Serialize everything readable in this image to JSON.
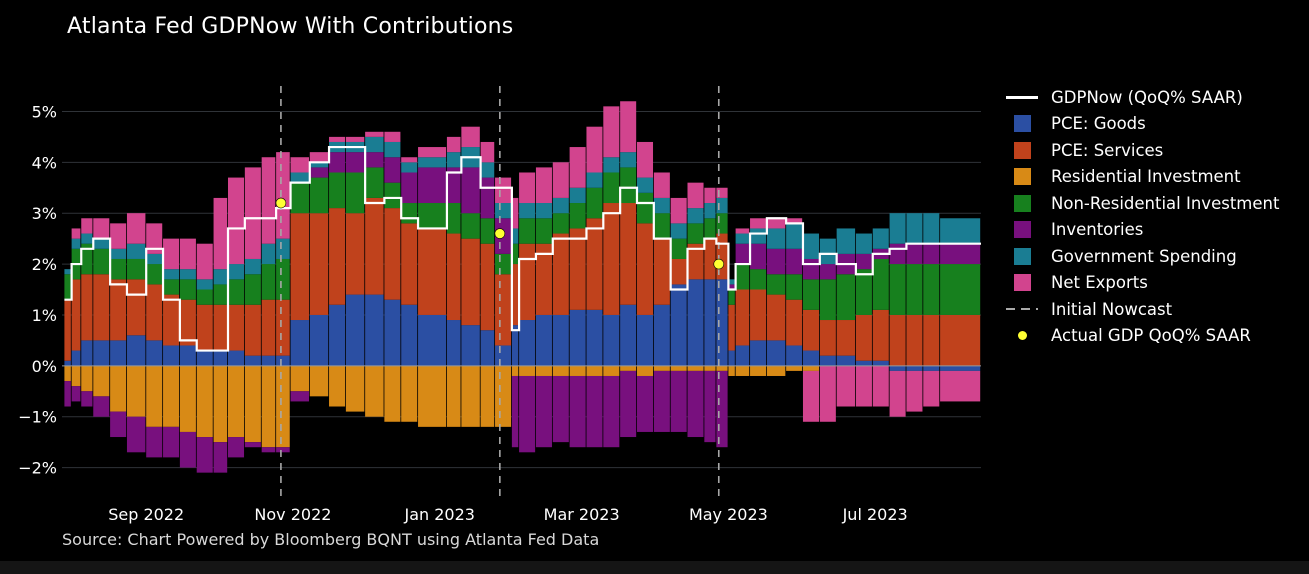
{
  "title": "Atlanta Fed GDPNow With Contributions",
  "source": "Source: Chart Powered by Bloomberg BQNT using Atlanta Fed Data",
  "legend": [
    {
      "label": "GDPNow (QoQ% SAAR)",
      "kind": "line",
      "color": "#ffffff"
    },
    {
      "label": "PCE: Goods",
      "kind": "box",
      "color": "#2b4fa3"
    },
    {
      "label": "PCE: Services",
      "kind": "box",
      "color": "#c0421c"
    },
    {
      "label": "Residential Investment",
      "kind": "box",
      "color": "#d88a16"
    },
    {
      "label": "Non-Residential Investment",
      "kind": "box",
      "color": "#17801e"
    },
    {
      "label": "Inventories",
      "kind": "box",
      "color": "#78107e"
    },
    {
      "label": "Government Spending",
      "kind": "box",
      "color": "#1a7d93"
    },
    {
      "label": "Net Exports",
      "kind": "box",
      "color": "#d2448e"
    },
    {
      "label": "Initial Nowcast",
      "kind": "dash",
      "color": "#aaaaaa"
    },
    {
      "label": "Actual GDP QoQ% SAAR",
      "kind": "dot",
      "color": "#ffff33"
    }
  ],
  "chart_data": {
    "type": "bar",
    "stacked": true,
    "x_start": "2022-07-28",
    "x_end": "2023-08-14",
    "xticks": [
      {
        "date": "2022-09-01",
        "label": "Sep 2022"
      },
      {
        "date": "2022-11-01",
        "label": "Nov 2022"
      },
      {
        "date": "2023-01-01",
        "label": "Jan 2023"
      },
      {
        "date": "2023-03-01",
        "label": "Mar 2023"
      },
      {
        "date": "2023-05-01",
        "label": "May 2023"
      },
      {
        "date": "2023-07-01",
        "label": "Jul 2023"
      }
    ],
    "ylim": [
      -2.5,
      5.5
    ],
    "yticks": [
      {
        "value": -2,
        "label": "−2%"
      },
      {
        "value": -1,
        "label": "−1%"
      },
      {
        "value": 0,
        "label": "0%"
      },
      {
        "value": 1,
        "label": "1%"
      },
      {
        "value": 2,
        "label": "2%"
      },
      {
        "value": 3,
        "label": "3%"
      },
      {
        "value": 4,
        "label": "4%"
      },
      {
        "value": 5,
        "label": "5%"
      }
    ],
    "initial_nowcasts": [
      "2022-10-27",
      "2023-01-26",
      "2023-04-27"
    ],
    "actual_gdp": [
      {
        "date": "2022-10-27",
        "value": 3.2
      },
      {
        "date": "2023-01-26",
        "value": 2.6
      },
      {
        "date": "2023-04-27",
        "value": 2.0
      }
    ],
    "components": [
      "PCE: Goods",
      "PCE: Services",
      "Residential Investment",
      "Non-Residential Investment",
      "Inventories",
      "Government Spending",
      "Net Exports"
    ],
    "series_colors": [
      "#2b4fa3",
      "#c0421c",
      "#d88a16",
      "#17801e",
      "#78107e",
      "#1a7d93",
      "#d2448e"
    ],
    "observations": [
      {
        "date": "2022-07-29",
        "values": [
          0.1,
          1.2,
          -0.3,
          0.5,
          -0.5,
          0.1,
          0.0
        ],
        "gdpnow": 1.3
      },
      {
        "date": "2022-08-01",
        "values": [
          0.3,
          1.4,
          -0.4,
          0.6,
          -0.3,
          0.2,
          0.2
        ],
        "gdpnow": 2.0
      },
      {
        "date": "2022-08-05",
        "values": [
          0.5,
          1.3,
          -0.5,
          0.6,
          -0.3,
          0.2,
          0.3
        ],
        "gdpnow": 2.3
      },
      {
        "date": "2022-08-10",
        "values": [
          0.5,
          1.3,
          -0.6,
          0.5,
          -0.4,
          0.2,
          0.4
        ],
        "gdpnow": 2.5
      },
      {
        "date": "2022-08-17",
        "values": [
          0.5,
          1.2,
          -0.9,
          0.4,
          -0.5,
          0.2,
          0.5
        ],
        "gdpnow": 1.6
      },
      {
        "date": "2022-08-24",
        "values": [
          0.6,
          1.1,
          -1.0,
          0.4,
          -0.7,
          0.3,
          0.6
        ],
        "gdpnow": 1.4
      },
      {
        "date": "2022-09-01",
        "values": [
          0.5,
          1.1,
          -1.2,
          0.4,
          -0.6,
          0.2,
          0.6
        ],
        "gdpnow": 2.3
      },
      {
        "date": "2022-09-08",
        "values": [
          0.4,
          1.0,
          -1.2,
          0.3,
          -0.6,
          0.2,
          0.6
        ],
        "gdpnow": 1.3
      },
      {
        "date": "2022-09-15",
        "values": [
          0.4,
          0.9,
          -1.3,
          0.4,
          -0.7,
          0.2,
          0.6
        ],
        "gdpnow": 0.5
      },
      {
        "date": "2022-09-22",
        "values": [
          0.3,
          0.9,
          -1.4,
          0.3,
          -0.7,
          0.2,
          0.7
        ],
        "gdpnow": 0.3
      },
      {
        "date": "2022-09-29",
        "values": [
          0.3,
          0.9,
          -1.5,
          0.4,
          -0.6,
          0.3,
          1.4
        ],
        "gdpnow": 0.3
      },
      {
        "date": "2022-10-05",
        "values": [
          0.3,
          0.9,
          -1.4,
          0.5,
          -0.4,
          0.3,
          1.7
        ],
        "gdpnow": 2.7
      },
      {
        "date": "2022-10-12",
        "values": [
          0.2,
          1.0,
          -1.5,
          0.6,
          -0.1,
          0.3,
          1.8
        ],
        "gdpnow": 2.9
      },
      {
        "date": "2022-10-19",
        "values": [
          0.2,
          1.1,
          -1.6,
          0.7,
          -0.1,
          0.4,
          1.7
        ],
        "gdpnow": 2.9
      },
      {
        "date": "2022-10-25",
        "values": [
          0.2,
          1.1,
          -1.6,
          0.8,
          -0.1,
          0.4,
          1.7
        ],
        "gdpnow": 3.1
      },
      {
        "date": "2022-10-31",
        "values": [
          0.9,
          2.1,
          -0.5,
          0.6,
          -0.2,
          0.2,
          0.3
        ],
        "gdpnow": 3.6
      },
      {
        "date": "2022-11-08",
        "values": [
          1.0,
          2.0,
          -0.6,
          0.7,
          0.2,
          0.1,
          0.2
        ],
        "gdpnow": 4.0
      },
      {
        "date": "2022-11-16",
        "values": [
          1.2,
          1.9,
          -0.8,
          0.7,
          0.4,
          0.2,
          0.1
        ],
        "gdpnow": 4.3
      },
      {
        "date": "2022-11-23",
        "values": [
          1.4,
          1.6,
          -0.9,
          0.8,
          0.4,
          0.2,
          0.1
        ],
        "gdpnow": 4.3
      },
      {
        "date": "2022-12-01",
        "values": [
          1.4,
          1.9,
          -1.0,
          0.6,
          0.3,
          0.3,
          0.1
        ],
        "gdpnow": 3.2
      },
      {
        "date": "2022-12-09",
        "values": [
          1.3,
          1.8,
          -1.1,
          0.5,
          0.5,
          0.3,
          0.2
        ],
        "gdpnow": 3.3
      },
      {
        "date": "2022-12-16",
        "values": [
          1.2,
          1.6,
          -1.1,
          0.4,
          0.6,
          0.2,
          0.1
        ],
        "gdpnow": 2.9
      },
      {
        "date": "2022-12-23",
        "values": [
          1.0,
          1.7,
          -1.2,
          0.5,
          0.7,
          0.2,
          0.2
        ],
        "gdpnow": 2.7
      },
      {
        "date": "2023-01-04",
        "values": [
          0.9,
          1.7,
          -1.2,
          0.6,
          0.7,
          0.3,
          0.3
        ],
        "gdpnow": 3.8
      },
      {
        "date": "2023-01-10",
        "values": [
          0.8,
          1.7,
          -1.2,
          0.5,
          0.9,
          0.4,
          0.4
        ],
        "gdpnow": 4.1
      },
      {
        "date": "2023-01-18",
        "values": [
          0.7,
          1.7,
          -1.2,
          0.5,
          0.8,
          0.3,
          0.4
        ],
        "gdpnow": 3.5
      },
      {
        "date": "2023-01-24",
        "values": [
          0.4,
          1.4,
          -1.2,
          0.4,
          0.7,
          0.3,
          0.5
        ],
        "gdpnow": 3.5
      },
      {
        "date": "2023-01-31",
        "values": [
          0.8,
          1.2,
          -0.2,
          0.4,
          -1.4,
          0.3,
          0.6
        ],
        "gdpnow": 0.7
      },
      {
        "date": "2023-02-03",
        "values": [
          0.9,
          1.5,
          -0.2,
          0.5,
          -1.5,
          0.3,
          0.6
        ],
        "gdpnow": 2.1
      },
      {
        "date": "2023-02-10",
        "values": [
          1.0,
          1.4,
          -0.2,
          0.5,
          -1.4,
          0.3,
          0.7
        ],
        "gdpnow": 2.2
      },
      {
        "date": "2023-02-17",
        "values": [
          1.0,
          1.6,
          -0.2,
          0.4,
          -1.3,
          0.3,
          0.7
        ],
        "gdpnow": 2.5
      },
      {
        "date": "2023-02-24",
        "values": [
          1.1,
          1.6,
          -0.2,
          0.5,
          -1.4,
          0.3,
          0.8
        ],
        "gdpnow": 2.5
      },
      {
        "date": "2023-03-03",
        "values": [
          1.1,
          1.8,
          -0.2,
          0.6,
          -1.4,
          0.3,
          0.9
        ],
        "gdpnow": 2.7
      },
      {
        "date": "2023-03-10",
        "values": [
          1.0,
          2.2,
          -0.2,
          0.6,
          -1.4,
          0.3,
          1.0
        ],
        "gdpnow": 3.0
      },
      {
        "date": "2023-03-17",
        "values": [
          1.2,
          2.0,
          -0.1,
          0.7,
          -1.3,
          0.3,
          1.0
        ],
        "gdpnow": 3.5
      },
      {
        "date": "2023-03-24",
        "values": [
          1.0,
          1.8,
          -0.2,
          0.6,
          -1.1,
          0.3,
          0.7
        ],
        "gdpnow": 3.2
      },
      {
        "date": "2023-03-31",
        "values": [
          1.2,
          1.3,
          -0.1,
          0.5,
          -1.2,
          0.3,
          0.5
        ],
        "gdpnow": 2.5
      },
      {
        "date": "2023-04-07",
        "values": [
          1.6,
          0.5,
          -0.1,
          0.4,
          -1.2,
          0.3,
          0.5
        ],
        "gdpnow": 1.5
      },
      {
        "date": "2023-04-14",
        "values": [
          1.7,
          0.7,
          -0.1,
          0.4,
          -1.3,
          0.3,
          0.5
        ],
        "gdpnow": 2.3
      },
      {
        "date": "2023-04-21",
        "values": [
          1.7,
          0.8,
          -0.1,
          0.4,
          -1.4,
          0.3,
          0.3
        ],
        "gdpnow": 2.5
      },
      {
        "date": "2023-04-26",
        "values": [
          1.7,
          0.9,
          -0.1,
          0.4,
          -1.5,
          0.3,
          0.2
        ],
        "gdpnow": 2.4
      },
      {
        "date": "2023-05-01",
        "values": [
          0.3,
          0.9,
          -0.2,
          0.3,
          0.1,
          0.1,
          0.0
        ],
        "gdpnow": 1.5
      },
      {
        "date": "2023-05-04",
        "values": [
          0.4,
          1.1,
          -0.2,
          0.5,
          0.4,
          0.2,
          0.1
        ],
        "gdpnow": 2.0
      },
      {
        "date": "2023-05-10",
        "values": [
          0.5,
          1.0,
          -0.2,
          0.4,
          0.5,
          0.3,
          0.2
        ],
        "gdpnow": 2.6
      },
      {
        "date": "2023-05-17",
        "values": [
          0.5,
          0.9,
          -0.2,
          0.4,
          0.5,
          0.4,
          0.2
        ],
        "gdpnow": 2.9
      },
      {
        "date": "2023-05-25",
        "values": [
          0.4,
          0.9,
          -0.1,
          0.5,
          0.5,
          0.5,
          0.1
        ],
        "gdpnow": 2.8
      },
      {
        "date": "2023-06-01",
        "values": [
          0.3,
          0.8,
          -0.1,
          0.6,
          0.4,
          0.5,
          -1.0
        ],
        "gdpnow": 2.0
      },
      {
        "date": "2023-06-08",
        "values": [
          0.2,
          0.7,
          0.0,
          0.8,
          0.3,
          0.5,
          -1.1
        ],
        "gdpnow": 2.2
      },
      {
        "date": "2023-06-15",
        "values": [
          0.2,
          0.7,
          0.0,
          0.9,
          0.4,
          0.5,
          -0.8
        ],
        "gdpnow": 2.0
      },
      {
        "date": "2023-06-23",
        "values": [
          0.1,
          0.9,
          0.0,
          0.9,
          0.3,
          0.4,
          -0.8
        ],
        "gdpnow": 1.8
      },
      {
        "date": "2023-06-30",
        "values": [
          0.1,
          1.0,
          0.0,
          1.0,
          0.2,
          0.4,
          -0.8
        ],
        "gdpnow": 2.2
      },
      {
        "date": "2023-07-07",
        "values": [
          -0.1,
          1.0,
          0.0,
          1.0,
          0.4,
          0.6,
          -0.9
        ],
        "gdpnow": 2.3
      },
      {
        "date": "2023-07-14",
        "values": [
          -0.1,
          1.0,
          0.0,
          1.0,
          0.4,
          0.6,
          -0.8
        ],
        "gdpnow": 2.4
      },
      {
        "date": "2023-07-21",
        "values": [
          -0.1,
          1.0,
          0.0,
          1.0,
          0.4,
          0.6,
          -0.7
        ],
        "gdpnow": 2.4
      },
      {
        "date": "2023-07-28",
        "values": [
          -0.1,
          1.0,
          0.0,
          1.0,
          0.4,
          0.5,
          -0.6
        ],
        "gdpnow": 2.4
      }
    ]
  }
}
